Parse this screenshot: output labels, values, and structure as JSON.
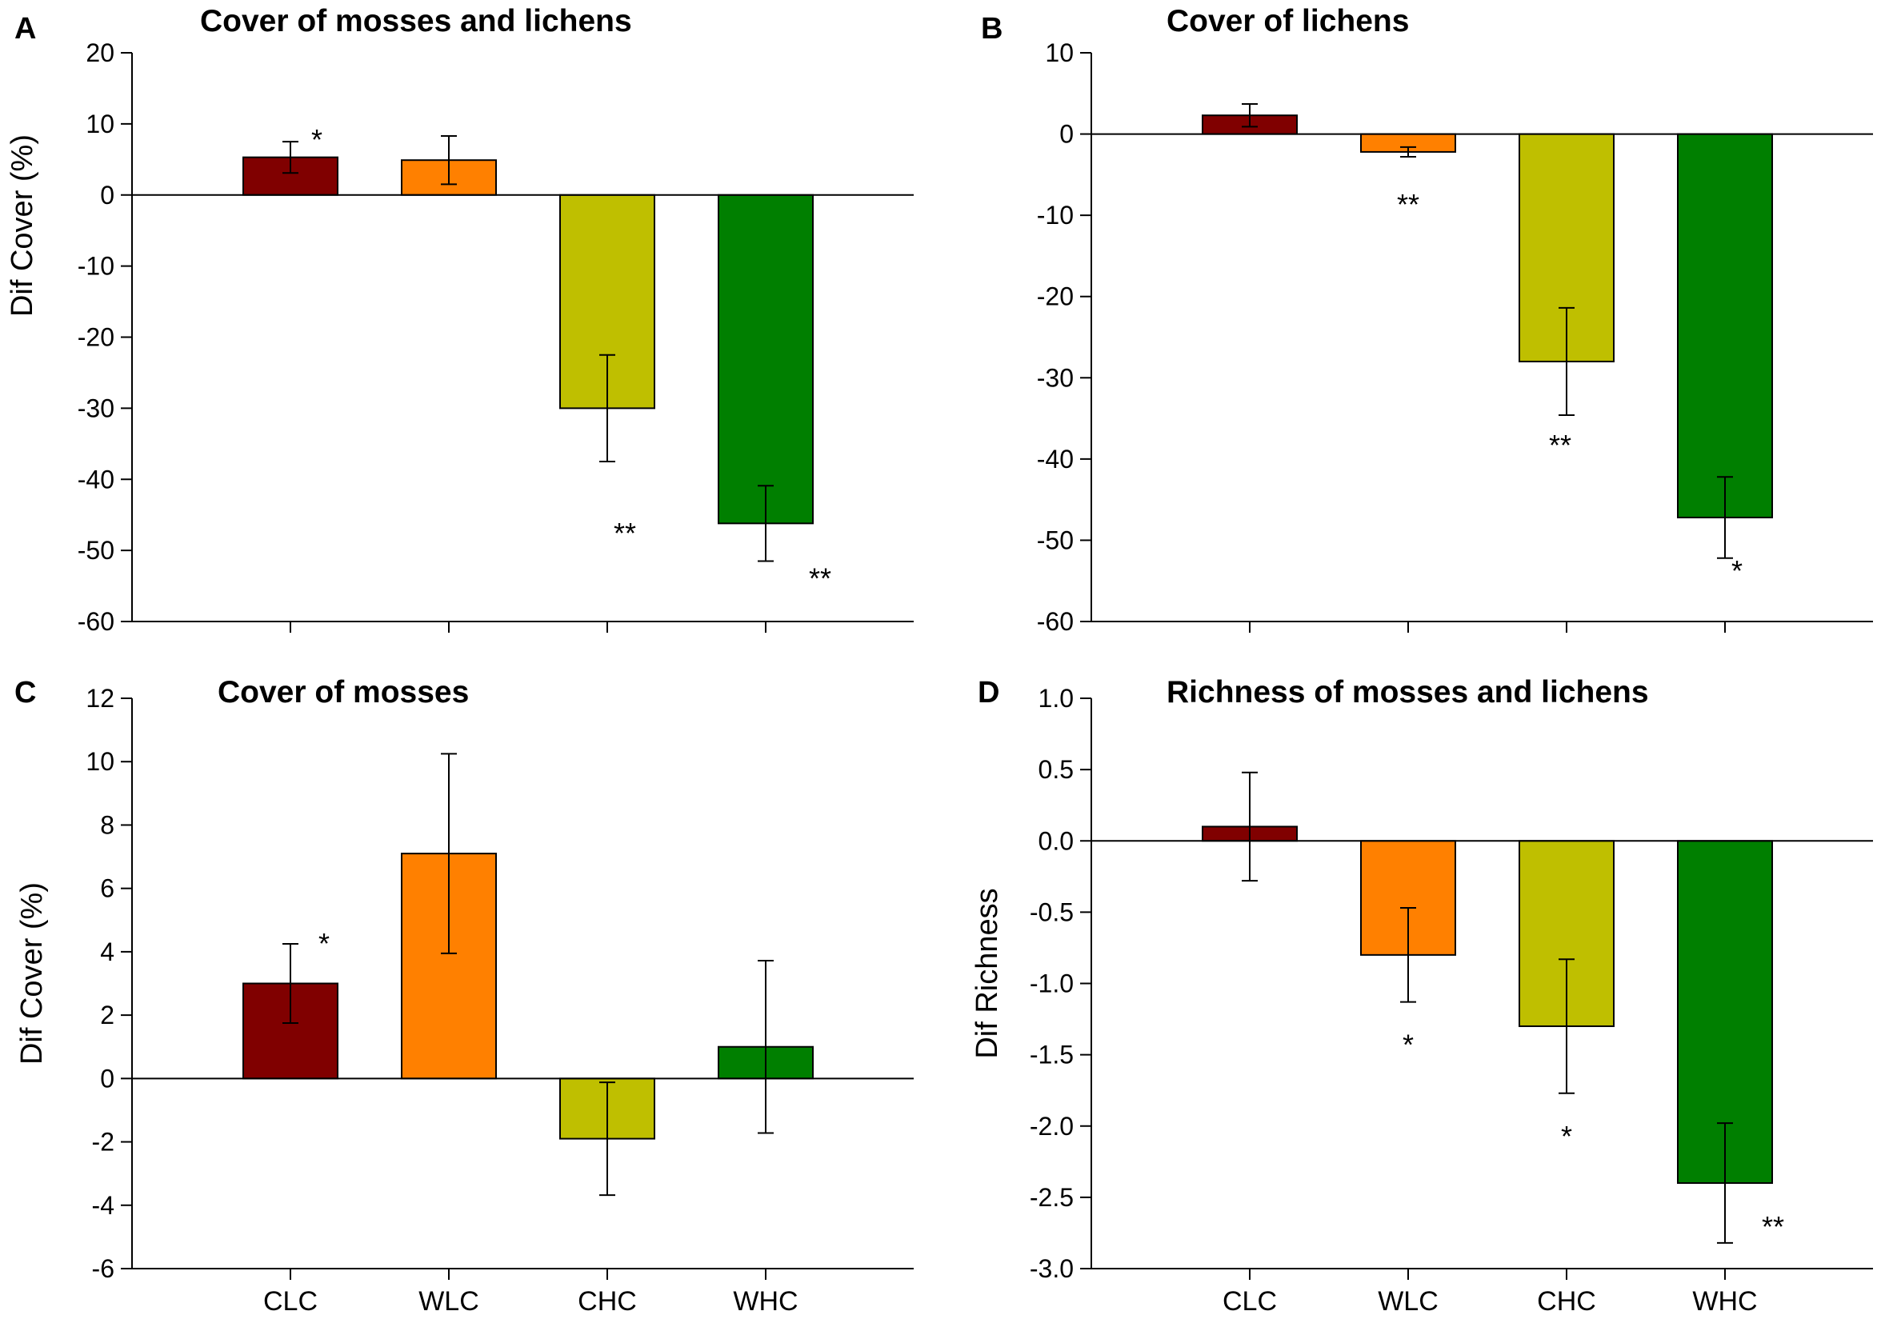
{
  "figure": {
    "category_colors": {
      "CLC": "#800000",
      "WLC": "#FF8000",
      "CHC": "#BFBF00",
      "WHC": "#007F00"
    }
  },
  "chart_data": [
    {
      "id": "A",
      "letter": "A",
      "type": "bar",
      "title": "Cover of mosses and lichens",
      "xlabel": "",
      "ylabel": "Dif Cover (%)",
      "ylim": [
        -60,
        20
      ],
      "yticks": [
        20,
        10,
        0,
        -10,
        -20,
        -30,
        -40,
        -50,
        -60
      ],
      "ytick_labels": [
        "20",
        "10",
        "0",
        "-10",
        "-20",
        "-30",
        "-40",
        "-50",
        "-60"
      ],
      "categories": [
        "CLC",
        "WLC",
        "CHC",
        "WHC"
      ],
      "show_category_labels": false,
      "values": [
        5.3,
        4.9,
        -30.0,
        -46.2
      ],
      "errors": [
        2.2,
        3.4,
        7.5,
        5.3
      ],
      "significance": [
        "*",
        "",
        "**",
        "**"
      ]
    },
    {
      "id": "B",
      "letter": "B",
      "type": "bar",
      "title": "Cover of lichens",
      "xlabel": "",
      "ylabel": "",
      "ylim": [
        -60,
        10
      ],
      "yticks": [
        10,
        0,
        -10,
        -20,
        -30,
        -40,
        -50,
        -60
      ],
      "ytick_labels": [
        "10",
        "0",
        "-10",
        "-20",
        "-30",
        "-40",
        "-50",
        "-60"
      ],
      "categories": [
        "CLC",
        "WLC",
        "CHC",
        "WHC"
      ],
      "show_category_labels": false,
      "values": [
        2.3,
        -2.2,
        -28.0,
        -47.2
      ],
      "errors": [
        1.4,
        0.6,
        6.6,
        5.0
      ],
      "significance": [
        "",
        "**",
        "**",
        "*"
      ]
    },
    {
      "id": "C",
      "letter": "C",
      "type": "bar",
      "title": "Cover of mosses",
      "xlabel": "",
      "ylabel": "Dif Cover (%)",
      "ylim": [
        -6,
        12
      ],
      "yticks": [
        12,
        10,
        8,
        6,
        4,
        2,
        0,
        -2,
        -4,
        -6
      ],
      "ytick_labels": [
        "12",
        "10",
        "8",
        "6",
        "4",
        "2",
        "0",
        "-2",
        "-4",
        "-6"
      ],
      "categories": [
        "CLC",
        "WLC",
        "CHC",
        "WHC"
      ],
      "show_category_labels": true,
      "values": [
        3.0,
        7.1,
        -1.9,
        1.0
      ],
      "errors": [
        1.25,
        3.15,
        1.78,
        2.72
      ],
      "significance": [
        "*",
        "",
        "",
        ""
      ]
    },
    {
      "id": "D",
      "letter": "D",
      "type": "bar",
      "title": "Richness of mosses and lichens",
      "xlabel": "",
      "ylabel": "Dif Richness",
      "ylim": [
        -3.0,
        1.0
      ],
      "yticks": [
        1.0,
        0.5,
        0.0,
        -0.5,
        -1.0,
        -1.5,
        -2.0,
        -2.5,
        -3.0
      ],
      "ytick_labels": [
        "1.0",
        "0.5",
        "0.0",
        "-0.5",
        "-1.0",
        "-1.5",
        "-2.0",
        "-2.5",
        "-3.0"
      ],
      "categories": [
        "CLC",
        "WLC",
        "CHC",
        "WHC"
      ],
      "show_category_labels": true,
      "values": [
        0.1,
        -0.8,
        -1.3,
        -2.4
      ],
      "errors": [
        0.38,
        0.33,
        0.47,
        0.42
      ],
      "significance": [
        "",
        "*",
        "*",
        "**"
      ]
    }
  ]
}
